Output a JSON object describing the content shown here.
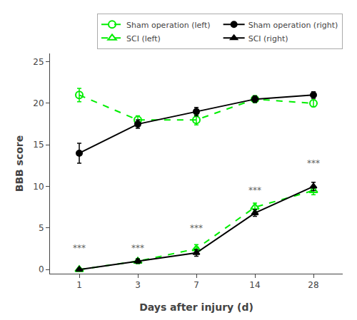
{
  "chart_data": {
    "type": "line",
    "xlabel": "Days after injury (d)",
    "ylabel": "BBB score",
    "categories": [
      "1",
      "3",
      "7",
      "14",
      "28"
    ],
    "series": [
      {
        "name": "Sham operation (left)",
        "color": "#00ee00",
        "marker": "circle-open",
        "line_style": "dash",
        "values": [
          21.0,
          18.0,
          18.0,
          20.5,
          20.0
        ],
        "errors": [
          0.8,
          0.5,
          0.6,
          0.4,
          0.4
        ]
      },
      {
        "name": "Sham operation (right)",
        "color": "#000000",
        "marker": "circle",
        "line_style": "solid",
        "values": [
          14.0,
          17.5,
          19.0,
          20.5,
          21.0
        ],
        "errors": [
          1.2,
          0.5,
          0.5,
          0.4,
          0.4
        ]
      },
      {
        "name": "SCI (left)",
        "color": "#00ee00",
        "marker": "triangle-up-open",
        "line_style": "dash",
        "values": [
          0.0,
          1.0,
          2.5,
          7.5,
          9.5
        ],
        "errors": [
          0.15,
          0.3,
          0.5,
          0.5,
          0.5
        ]
      },
      {
        "name": "SCI (right)",
        "color": "#000000",
        "marker": "triangle-up",
        "line_style": "solid",
        "values": [
          0.0,
          1.0,
          2.0,
          6.8,
          10.0
        ],
        "errors": [
          0.15,
          0.25,
          0.4,
          0.4,
          0.5
        ]
      }
    ],
    "annotations": [
      {
        "category": "1",
        "y": 1.8,
        "text": "***"
      },
      {
        "category": "3",
        "y": 1.8,
        "text": "***"
      },
      {
        "category": "7",
        "y": 4.2,
        "text": "***"
      },
      {
        "category": "14",
        "y": 8.8,
        "text": "***"
      },
      {
        "category": "28",
        "y": 12.0,
        "text": "***"
      }
    ],
    "ylim": [
      -0.5,
      26
    ],
    "yticks": [
      0,
      5,
      10,
      15,
      20,
      25
    ],
    "grid": false,
    "legend": "upper right"
  }
}
